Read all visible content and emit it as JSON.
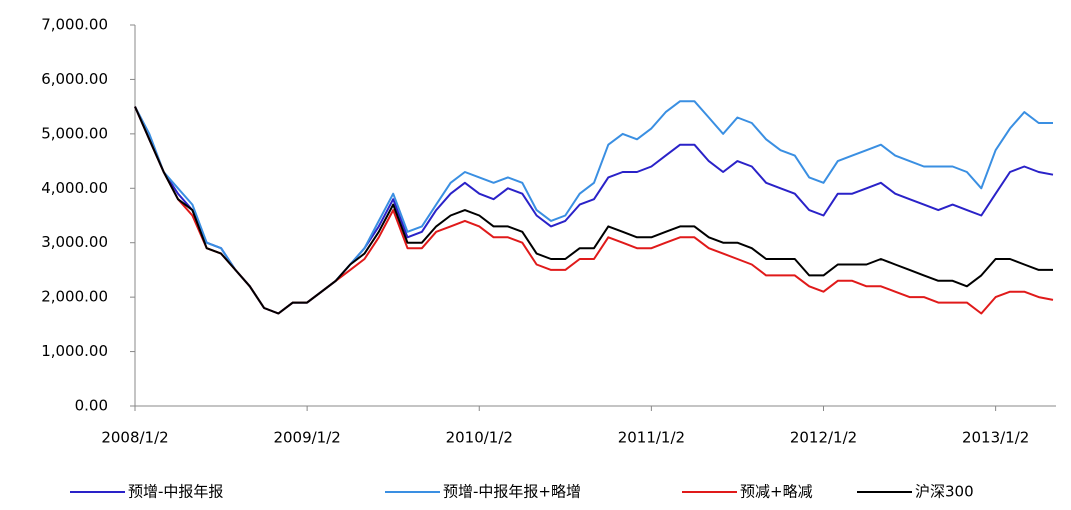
{
  "chart_data": {
    "type": "line",
    "categories": [
      "2008/1/2",
      null,
      null,
      null,
      null,
      null,
      null,
      null,
      null,
      null,
      null,
      null,
      "2009/1/2",
      null,
      null,
      null,
      null,
      null,
      null,
      null,
      null,
      null,
      null,
      null,
      "2010/1/2",
      null,
      null,
      null,
      null,
      null,
      null,
      null,
      null,
      null,
      null,
      null,
      "2011/1/2",
      null,
      null,
      null,
      null,
      null,
      null,
      null,
      null,
      null,
      null,
      null,
      "2012/1/2",
      null,
      null,
      null,
      null,
      null,
      null,
      null,
      null,
      null,
      null,
      null,
      "2013/1/2",
      null,
      null,
      null,
      null
    ],
    "series": [
      {
        "name": "预增-中报年报",
        "color": "#2a22c8",
        "values": [
          5500,
          4900,
          4300,
          3900,
          3600,
          3000,
          2900,
          2500,
          2200,
          1800,
          1700,
          1900,
          1900,
          2100,
          2300,
          2600,
          2900,
          3300,
          3800,
          3100,
          3200,
          3600,
          3900,
          4100,
          3900,
          3800,
          4000,
          3900,
          3500,
          3300,
          3400,
          3700,
          3800,
          4200,
          4300,
          4300,
          4400,
          4600,
          4800,
          4800,
          4500,
          4300,
          4500,
          4400,
          4100,
          4000,
          3900,
          3600,
          3500,
          3900,
          3900,
          4000,
          4100,
          3900,
          3800,
          3700,
          3600,
          3700,
          3600,
          3500,
          3900,
          4300,
          4400,
          4300,
          4250
        ]
      },
      {
        "name": "预增-中报年报+略增",
        "color": "#3a8fe2",
        "values": [
          5500,
          5000,
          4300,
          4000,
          3700,
          3000,
          2900,
          2500,
          2200,
          1800,
          1700,
          1900,
          1900,
          2100,
          2300,
          2600,
          2900,
          3400,
          3900,
          3200,
          3300,
          3700,
          4100,
          4300,
          4200,
          4100,
          4200,
          4100,
          3600,
          3400,
          3500,
          3900,
          4100,
          4800,
          5000,
          4900,
          5100,
          5400,
          5600,
          5600,
          5300,
          5000,
          5300,
          5200,
          4900,
          4700,
          4600,
          4200,
          4100,
          4500,
          4600,
          4700,
          4800,
          4600,
          4500,
          4400,
          4400,
          4400,
          4300,
          4000,
          4700,
          5100,
          5400,
          5200,
          5200
        ]
      },
      {
        "name": "预减+略减",
        "color": "#e01a1a",
        "values": [
          5500,
          4900,
          4300,
          3800,
          3500,
          2900,
          2800,
          2500,
          2200,
          1800,
          1700,
          1900,
          1900,
          2100,
          2300,
          2500,
          2700,
          3100,
          3600,
          2900,
          2900,
          3200,
          3300,
          3400,
          3300,
          3100,
          3100,
          3000,
          2600,
          2500,
          2500,
          2700,
          2700,
          3100,
          3000,
          2900,
          2900,
          3000,
          3100,
          3100,
          2900,
          2800,
          2700,
          2600,
          2400,
          2400,
          2400,
          2200,
          2100,
          2300,
          2300,
          2200,
          2200,
          2100,
          2000,
          2000,
          1900,
          1900,
          1900,
          1700,
          2000,
          2100,
          2100,
          2000,
          1950
        ]
      },
      {
        "name": "沪深300",
        "color": "#000000",
        "values": [
          5500,
          4900,
          4300,
          3800,
          3600,
          2900,
          2800,
          2500,
          2200,
          1800,
          1700,
          1900,
          1900,
          2100,
          2300,
          2600,
          2800,
          3200,
          3700,
          3000,
          3000,
          3300,
          3500,
          3600,
          3500,
          3300,
          3300,
          3200,
          2800,
          2700,
          2700,
          2900,
          2900,
          3300,
          3200,
          3100,
          3100,
          3200,
          3300,
          3300,
          3100,
          3000,
          3000,
          2900,
          2700,
          2700,
          2700,
          2400,
          2400,
          2600,
          2600,
          2600,
          2700,
          2600,
          2500,
          2400,
          2300,
          2300,
          2200,
          2400,
          2700,
          2700,
          2600,
          2500,
          2500
        ]
      }
    ],
    "ylim": [
      0,
      7000
    ],
    "yticks": [
      {
        "value": 0,
        "label": "0.00"
      },
      {
        "value": 1000,
        "label": "1,000.00"
      },
      {
        "value": 2000,
        "label": "2,000.00"
      },
      {
        "value": 3000,
        "label": "3,000.00"
      },
      {
        "value": 4000,
        "label": "4,000.00"
      },
      {
        "value": 5000,
        "label": "5,000.00"
      },
      {
        "value": 6000,
        "label": "6,000.00"
      },
      {
        "value": 7000,
        "label": "7,000.00"
      }
    ],
    "legend": "bottom"
  }
}
